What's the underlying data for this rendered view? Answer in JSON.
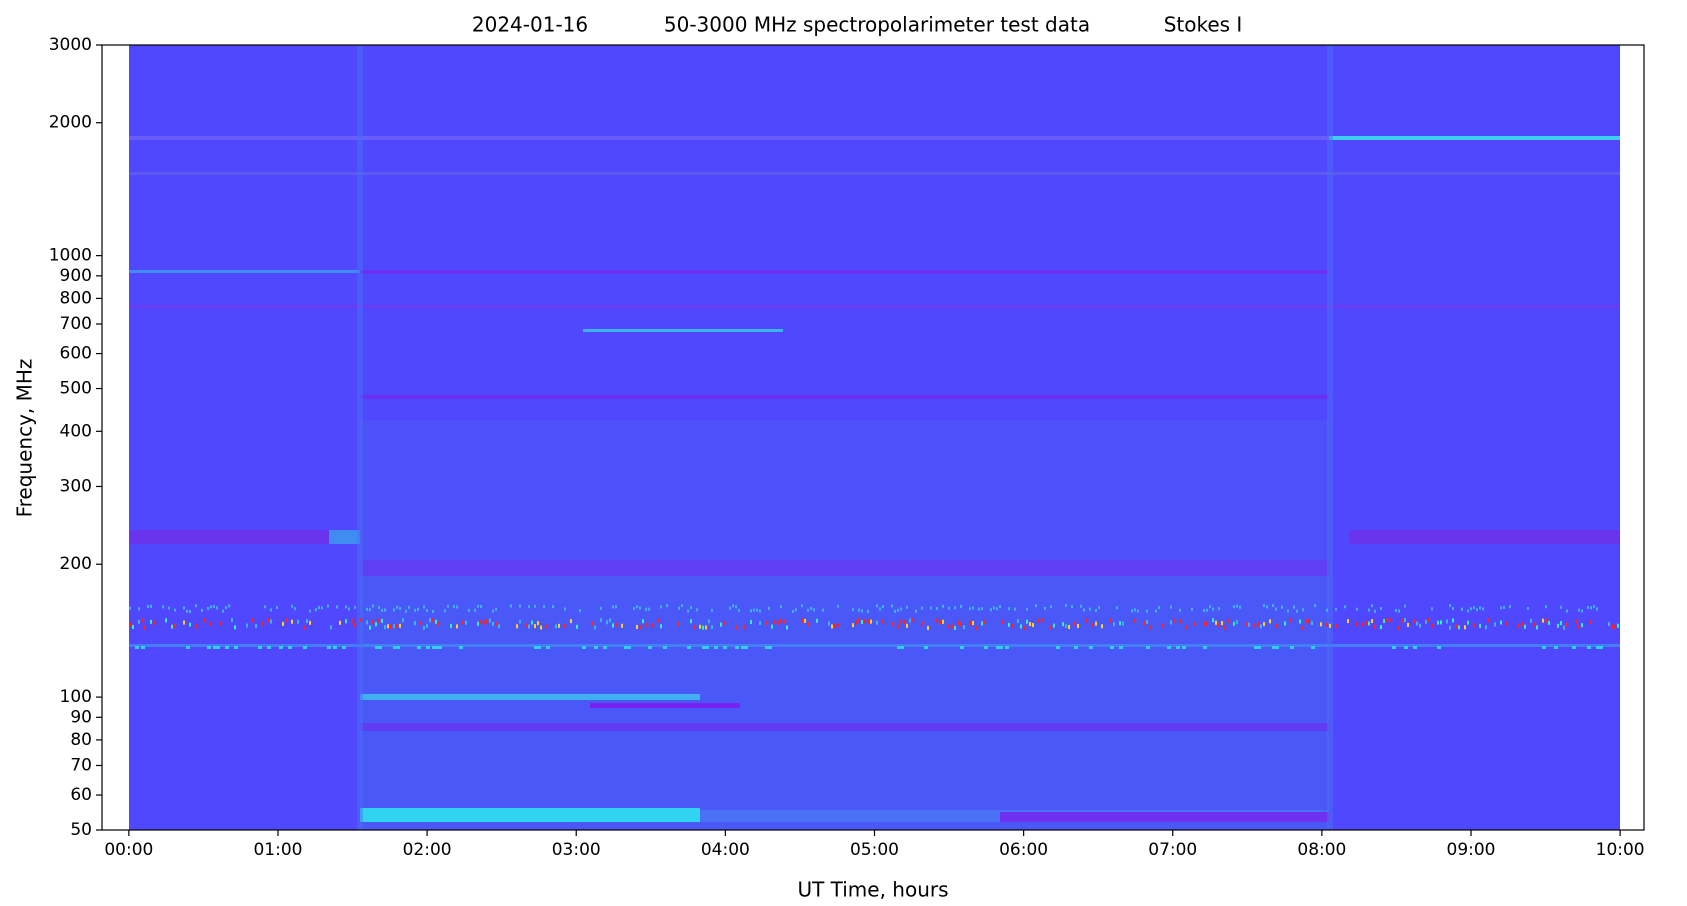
{
  "chart_data": {
    "type": "heatmap",
    "title": [
      "2024-01-16",
      "50-3000 MHz spectropolarimeter test data",
      "Stokes I"
    ],
    "xlabel": "UT Time, hours",
    "ylabel": "Frequency, MHz",
    "xlim": [
      -0.18,
      10.16
    ],
    "xticks": [
      {
        "value": 0,
        "label": "00:00"
      },
      {
        "value": 1,
        "label": "01:00"
      },
      {
        "value": 2,
        "label": "02:00"
      },
      {
        "value": 3,
        "label": "03:00"
      },
      {
        "value": 4,
        "label": "04:00"
      },
      {
        "value": 5,
        "label": "05:00"
      },
      {
        "value": 6,
        "label": "06:00"
      },
      {
        "value": 7,
        "label": "07:00"
      },
      {
        "value": 8,
        "label": "08:00"
      },
      {
        "value": 9,
        "label": "09:00"
      },
      {
        "value": 10,
        "label": "10:00"
      }
    ],
    "ylim": [
      50,
      3000
    ],
    "yscale": "log",
    "yticks": [
      50,
      60,
      70,
      80,
      90,
      100,
      200,
      300,
      400,
      500,
      600,
      700,
      800,
      900,
      1000,
      2000,
      3000
    ]
  }
}
